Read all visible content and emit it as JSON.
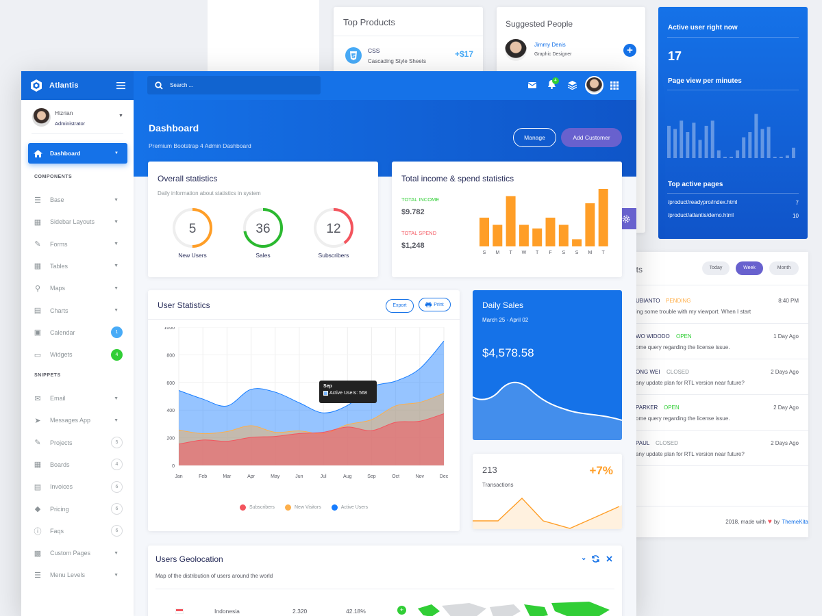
{
  "back": {
    "top_products": {
      "title": "Top Products",
      "item": {
        "name": "CSS",
        "desc": "Cascading Style Sheets",
        "value": "+$17"
      }
    },
    "suggested_people": {
      "title": "Suggested People",
      "person": {
        "name": "Jimmy Denis",
        "role": "Graphic Designer"
      }
    },
    "active_user": {
      "title": "Active user right now",
      "count": "17",
      "subtitle": "Page view per minutes",
      "bars": [
        0.62,
        0.56,
        0.72,
        0.5,
        0.68,
        0.35,
        0.62,
        0.72,
        0.15,
        0.02,
        0.02,
        0.15,
        0.4,
        0.5,
        0.85,
        0.56,
        0.6,
        0.02,
        0.02,
        0.05,
        0.2
      ],
      "top_pages_title": "Top active pages",
      "pages": [
        {
          "url": "/product/readypro/index.html",
          "count": "7"
        },
        {
          "url": "/product/atlantis/demo.html",
          "count": "10"
        }
      ]
    },
    "tickets": {
      "title_fragment": "ets",
      "tabs": [
        "Today",
        "Week",
        "Month"
      ],
      "active_tab": "Week",
      "rows": [
        {
          "name": "UBIANTO",
          "status": "PENDING",
          "status_color": "#ffad46",
          "msg": "ing some trouble with my viewport. When I start",
          "time": "8:40 PM"
        },
        {
          "name": "WO WIDODO",
          "status": "OPEN",
          "status_color": "#31ce36",
          "msg": "ome query regarding the license issue.",
          "time": "1 Day Ago"
        },
        {
          "name": "ONG WEI",
          "status": "CLOSED",
          "status_color": "#8d9498",
          "msg": "any update plan for RTL version near future?",
          "time": "2 Days Ago"
        },
        {
          "name": "PARKER",
          "status": "OPEN",
          "status_color": "#31ce36",
          "msg": "ome query regarding the license issue.",
          "time": "2 Day Ago"
        },
        {
          "name": "PAUL",
          "status": "CLOSED",
          "status_color": "#8d9498",
          "msg": "any update plan for RTL version near future?",
          "time": "2 Days Ago"
        }
      ],
      "footer_text": "2018, made with",
      "footer_by": "by",
      "footer_link": "ThemeKita"
    }
  },
  "app": {
    "brand": "Atlantis",
    "search_placeholder": "Search ...",
    "notification_count": "4",
    "user": {
      "name": "Hizrian",
      "role": "Administrator"
    },
    "nav": {
      "dashboard": "Dashboard",
      "components_title": "COMPONENTS",
      "components": [
        {
          "label": "Base",
          "icon": "layers-icon",
          "type": "chev"
        },
        {
          "label": "Sidebar Layouts",
          "icon": "th-list-icon",
          "type": "chev"
        },
        {
          "label": "Forms",
          "icon": "pen-square-icon",
          "type": "chev"
        },
        {
          "label": "Tables",
          "icon": "table-icon",
          "type": "chev"
        },
        {
          "label": "Maps",
          "icon": "map-marker-icon",
          "type": "chev"
        },
        {
          "label": "Charts",
          "icon": "bar-chart-icon",
          "type": "chev"
        },
        {
          "label": "Calendar",
          "icon": "calendar-icon",
          "type": "badge",
          "badge": "1",
          "badge_color": "#48abf7"
        },
        {
          "label": "Widgets",
          "icon": "desktop-icon",
          "type": "badge",
          "badge": "4",
          "badge_color": "#31ce36"
        }
      ],
      "snippets_title": "SNIPPETS",
      "snippets": [
        {
          "label": "Email",
          "icon": "envelope-icon",
          "type": "chev"
        },
        {
          "label": "Messages App",
          "icon": "paper-plane-icon",
          "type": "chev"
        },
        {
          "label": "Projects",
          "icon": "file-signature-icon",
          "type": "count",
          "count": "5"
        },
        {
          "label": "Boards",
          "icon": "th-icon",
          "type": "count",
          "count": "4"
        },
        {
          "label": "Invoices",
          "icon": "file-invoice-icon",
          "type": "count",
          "count": "6"
        },
        {
          "label": "Pricing",
          "icon": "tag-icon",
          "type": "count",
          "count": "6"
        },
        {
          "label": "Faqs",
          "icon": "question-circle-icon",
          "type": "count",
          "count": "6"
        },
        {
          "label": "Custom Pages",
          "icon": "paint-roller-icon",
          "type": "chev"
        },
        {
          "label": "Menu Levels",
          "icon": "bars-icon",
          "type": "chev"
        }
      ]
    },
    "header": {
      "title": "Dashboard",
      "subtitle": "Premium Bootstrap 4 Admin Dashboard",
      "manage": "Manage",
      "add_customer": "Add Customer"
    },
    "overall": {
      "title": "Overall statistics",
      "subtitle": "Daily information about statistics in system",
      "circles": [
        {
          "value": "5",
          "label": "New Users",
          "color": "#ff9e27",
          "fraction": 0.5
        },
        {
          "value": "36",
          "label": "Sales",
          "color": "#2bb930",
          "fraction": 0.72
        },
        {
          "value": "12",
          "label": "Subscribers",
          "color": "#f3545d",
          "fraction": 0.4
        }
      ]
    },
    "income": {
      "title": "Total income & spend statistics",
      "income_label": "TOTAL INCOME",
      "income_value": "$9.782",
      "spend_label": "TOTAL SPEND",
      "spend_value": "$1,248",
      "chart_data": {
        "type": "bar",
        "categories": [
          "S",
          "M",
          "T",
          "W",
          "T",
          "F",
          "S",
          "S",
          "M",
          "T"
        ],
        "values": [
          40,
          30,
          70,
          30,
          25,
          40,
          30,
          10,
          60,
          80
        ],
        "ylim": [
          0,
          80
        ]
      }
    },
    "user_stats": {
      "title": "User Statistics",
      "export": "Export",
      "print": "Print",
      "tooltip_title": "Sep",
      "tooltip_text": "Active Users: 568",
      "chart_data": {
        "type": "area",
        "x": [
          "Jan",
          "Feb",
          "Mar",
          "Apr",
          "May",
          "Jun",
          "Jul",
          "Aug",
          "Sep",
          "Oct",
          "Nov",
          "Dec"
        ],
        "ylim": [
          0,
          1000
        ],
        "yticks": [
          0,
          200,
          400,
          600,
          800,
          1000
        ],
        "series": [
          {
            "name": "Subscribers",
            "color": "#f3545d",
            "values": [
              154,
              184,
              175,
              203,
              210,
              231,
              240,
              278,
              252,
              312,
              320,
              374
            ]
          },
          {
            "name": "New Visitors",
            "color": "#fdaf4b",
            "values": [
              256,
              230,
              245,
              287,
              240,
              250,
              230,
              295,
              331,
              431,
              456,
              521
            ]
          },
          {
            "name": "Active Users",
            "color": "#177dff",
            "values": [
              542,
              480,
              430,
              550,
              530,
              453,
              380,
              434,
              568,
              610,
              700,
              900
            ]
          }
        ]
      }
    },
    "daily_sales": {
      "title": "Daily Sales",
      "date": "March 25 - April 02",
      "amount": "$4,578.58"
    },
    "transactions": {
      "count": "213",
      "change": "+7%",
      "label": "Transactions"
    },
    "geo": {
      "title": "Users Geolocation",
      "subtitle": "Map of the distribution of users around the world",
      "row": {
        "country": "Indonesia",
        "count": "2.320",
        "percent": "42.18%"
      }
    }
  }
}
